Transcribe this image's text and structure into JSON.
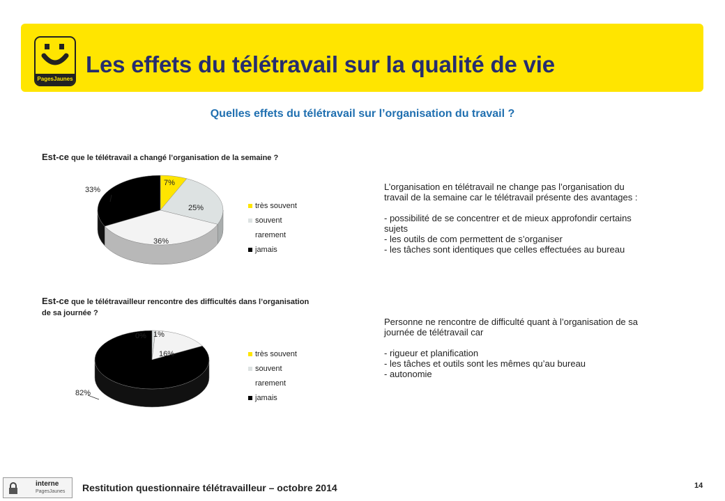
{
  "brand": {
    "logo_text": "PagesJaunes"
  },
  "header": {
    "title": "Les effets du télétravail sur la qualité de vie"
  },
  "subtitle": "Quelles effets du télétravail sur l’organisation du travail ?",
  "colors": {
    "banner": "#ffe500",
    "title": "#262d6e",
    "subtitle": "#1f6fb0",
    "tres_souvent": "#ffe500",
    "souvent": "#dde2e2",
    "rarement": "#f3f3f3",
    "jamais": "#000000"
  },
  "chart_data": [
    {
      "type": "pie",
      "title_lead": "Est-ce",
      "title_rest": " que le télétravail a changé l’organisation de la semaine ?",
      "categories": [
        "très souvent",
        "souvent",
        "rarement",
        "jamais"
      ],
      "values": [
        7,
        25,
        36,
        33
      ],
      "labels": [
        "7%",
        "25%",
        "36%",
        "33%"
      ],
      "legend_position": "right",
      "style": "3d"
    },
    {
      "type": "pie",
      "title_lead": "Est-ce",
      "title_rest": " que le télétravailleur rencontre des difficultés dans l’organisation de sa journée ?",
      "categories": [
        "très souvent",
        "souvent",
        "rarement",
        "jamais"
      ],
      "values": [
        0,
        1,
        16,
        82
      ],
      "labels": [
        "0%",
        "1%",
        "16%",
        "82%"
      ],
      "legend_position": "right",
      "style": "3d"
    }
  ],
  "text_block_1": {
    "intro": "L’organisation en télétravail ne change pas l’organisation du travail de la semaine car le télétravail présente des avantages :",
    "bullets": [
      "-  possibilité  de se concentrer et de mieux approfondir certains sujets",
      "-  les outils de com permettent de s’organiser",
      "-  les tâches sont identiques que celles effectuées au bureau"
    ]
  },
  "text_block_2": {
    "intro": "Personne ne rencontre de difficulté quant à l’organisation de sa journée de télétravail car",
    "bullets": [
      "-  rigueur et planification",
      "-  les tâches et outils sont les mêmes qu’au bureau",
      "-  autonomie"
    ]
  },
  "footer": {
    "badge_line1": "interne",
    "badge_line2": "PagesJaunes",
    "text": "Restitution questionnaire télétravailleur – octobre 2014",
    "page_number": "14"
  }
}
